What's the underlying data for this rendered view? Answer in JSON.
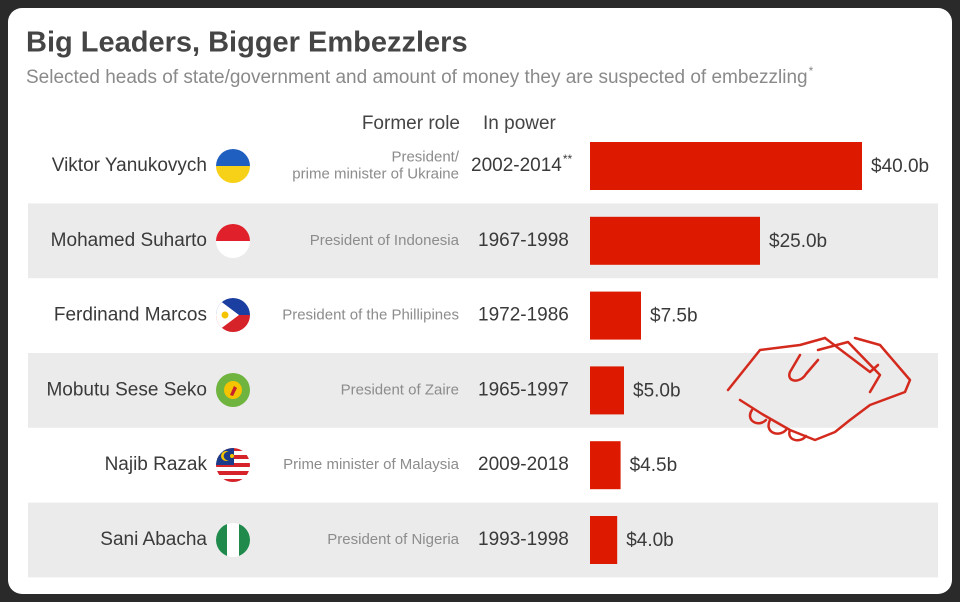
{
  "chart_data": {
    "type": "bar",
    "title": "Big Leaders, Bigger Embezzlers",
    "subtitle": "Selected heads of state/government and amount of money they are suspected of embezzling",
    "subtitle_mark": "*",
    "column_headers": [
      "Former role",
      "In power"
    ],
    "categories": [
      "Viktor Yanukovych",
      "Mohamed Suharto",
      "Ferdinand Marcos",
      "Mobutu Sese Seko",
      "Najib Razak",
      "Sani Abacha"
    ],
    "roles": [
      [
        "President/",
        "prime minister of Ukraine"
      ],
      [
        "President of Indonesia"
      ],
      [
        "President of the Phillipines"
      ],
      [
        "President of Zaire"
      ],
      [
        "Prime minister of Malaysia"
      ],
      [
        "President of Nigeria"
      ]
    ],
    "periods": [
      "2002-2014",
      "1967-1998",
      "1972-1986",
      "1965-1997",
      "2009-2018",
      "1993-1998"
    ],
    "period_marks": [
      "**",
      null,
      null,
      null,
      null,
      null
    ],
    "values": [
      40,
      25,
      7.5,
      5,
      4.5,
      4
    ],
    "value_labels": [
      "$40.0b",
      "$25.0b",
      "$7.5b",
      "$5.0b",
      "$4.5b",
      "$4.0b"
    ],
    "color": "#dd1a00"
  }
}
